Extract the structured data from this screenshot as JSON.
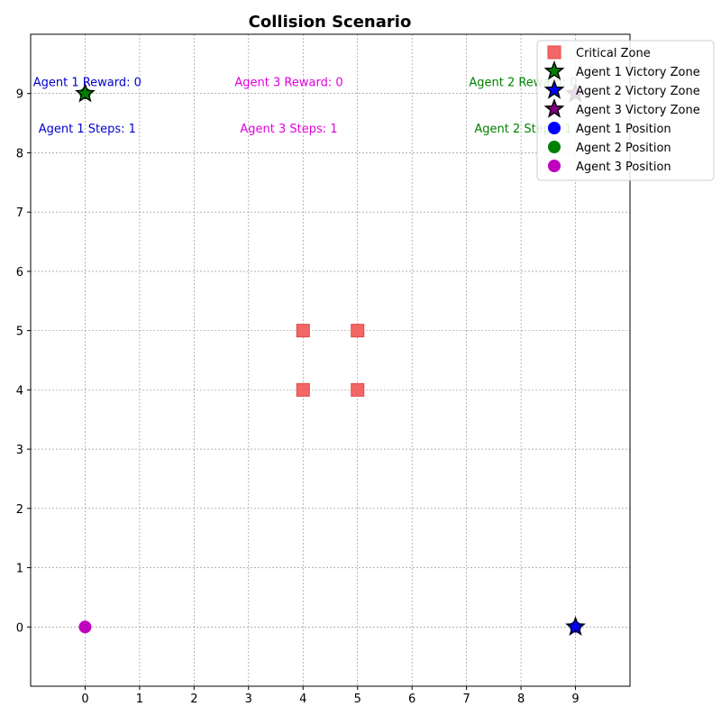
{
  "chart_data": {
    "type": "scatter",
    "title": "Collision Scenario",
    "xlabel": "",
    "ylabel": "",
    "xlim": [
      -1,
      10
    ],
    "ylim": [
      -1,
      10
    ],
    "xticks": [
      0,
      1,
      2,
      3,
      4,
      5,
      6,
      7,
      8,
      9
    ],
    "yticks": [
      0,
      1,
      2,
      3,
      4,
      5,
      6,
      7,
      8,
      9
    ],
    "grid": true,
    "legend_position": "top-right",
    "series": [
      {
        "name": "Critical Zone",
        "marker": "square",
        "color": "#f25f5f",
        "points": [
          [
            4,
            4
          ],
          [
            4,
            5
          ],
          [
            5,
            4
          ],
          [
            5,
            5
          ]
        ]
      },
      {
        "name": "Agent 1 Victory Zone",
        "marker": "star",
        "color": "#008000",
        "points": [
          [
            0,
            9
          ]
        ]
      },
      {
        "name": "Agent 2 Victory Zone",
        "marker": "star",
        "color": "#0000ff",
        "points": [
          [
            9,
            0
          ]
        ]
      },
      {
        "name": "Agent 3 Victory Zone",
        "marker": "star",
        "color": "#800080",
        "points": [
          [
            9,
            9
          ]
        ]
      },
      {
        "name": "Agent 1 Position",
        "marker": "circle",
        "color": "#0000ff",
        "points": [
          [
            9,
            0
          ]
        ]
      },
      {
        "name": "Agent 2 Position",
        "marker": "circle",
        "color": "#008000",
        "points": [
          [
            0,
            9
          ]
        ]
      },
      {
        "name": "Agent 3 Position",
        "marker": "circle",
        "color": "#bf00bf",
        "points": [
          [
            0,
            0
          ]
        ]
      }
    ],
    "annotations": [
      {
        "text": "Agent 1 Reward: 0",
        "color": "#0000cc",
        "x": 0.8,
        "y": 9.2
      },
      {
        "text": "Agent 1 Steps: 1",
        "color": "#0000cc",
        "x": 0.8,
        "y": 8.42
      },
      {
        "text": "Agent 3 Reward: 0",
        "color": "#e000e0",
        "x": 4.5,
        "y": 9.2
      },
      {
        "text": "Agent 3 Steps: 1",
        "color": "#e000e0",
        "x": 4.5,
        "y": 8.42
      },
      {
        "text": "Agent 2 Reward: 0",
        "color": "#008000",
        "x": 8.8,
        "y": 9.2
      },
      {
        "text": "Agent 2 Steps: 1",
        "color": "#008000",
        "x": 8.8,
        "y": 8.42
      }
    ]
  }
}
